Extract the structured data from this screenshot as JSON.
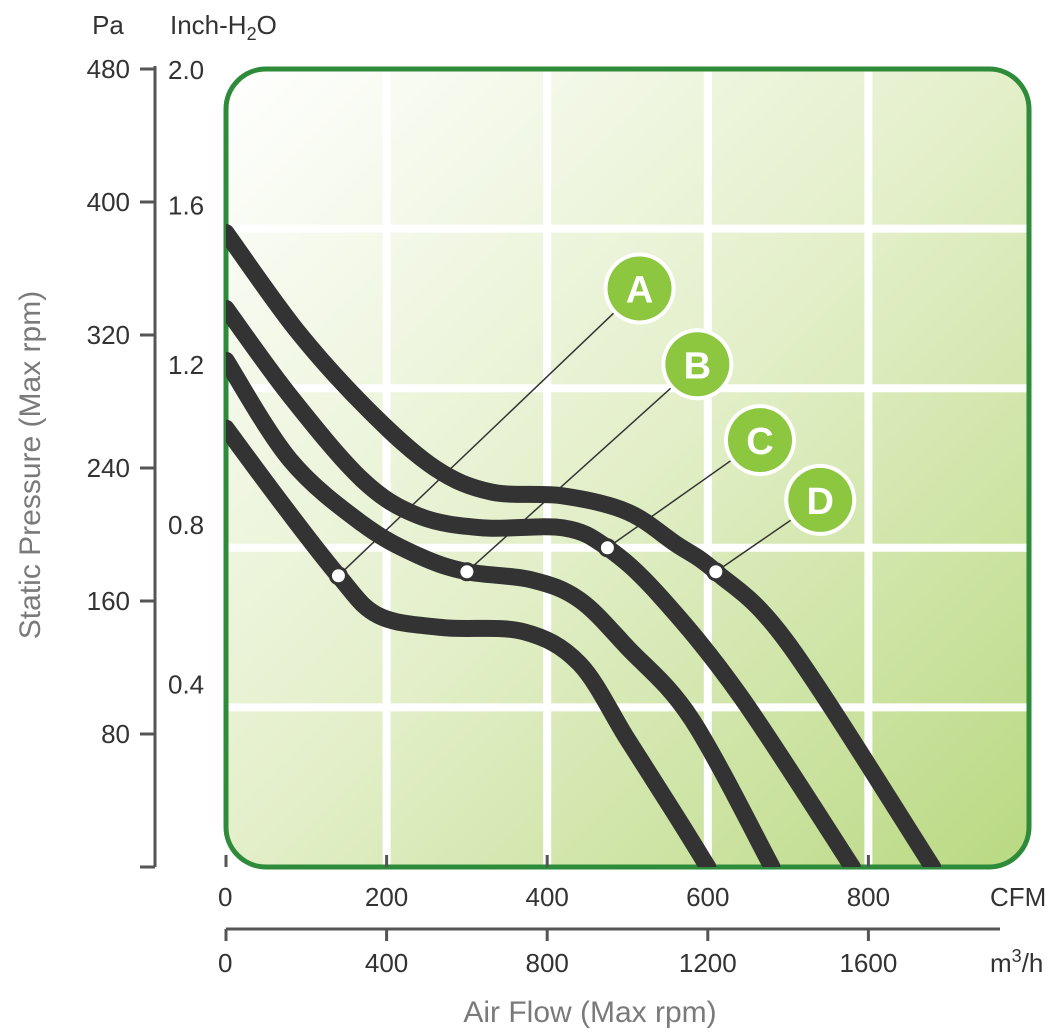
{
  "chart_data": {
    "type": "line",
    "ylabel": "Static Pressure (Max rpm)",
    "xlabel": "Air Flow (Max rpm)",
    "y_units_left": "Pa",
    "y_units_inner_prefix": "Inch-H",
    "y_units_inner_sub": "2",
    "y_units_inner_suffix": "O",
    "x_units_top": "CFM",
    "x_units_bottom_prefix": "m",
    "x_units_bottom_sup": "3",
    "x_units_bottom_suffix": "/h",
    "ylim_inch_h2o": [
      0,
      2.0
    ],
    "xlim_cfm": [
      0,
      1000
    ],
    "pa_ticks": [
      80,
      160,
      240,
      320,
      400,
      480
    ],
    "inch_ticks": [
      0.4,
      0.8,
      1.2,
      1.6,
      2.0
    ],
    "cfm_ticks": [
      0,
      200,
      400,
      600,
      800
    ],
    "m3h_ticks": [
      0,
      400,
      800,
      1200,
      1600
    ],
    "grid": true,
    "colors": {
      "frame": "#2e8b3a",
      "curve": "#333333",
      "badge": "#8dc63f",
      "axis": "#555555"
    },
    "series": [
      {
        "name": "A",
        "operating_point": {
          "x": 140,
          "y": 0.73
        },
        "x": [
          0,
          70,
          140,
          190,
          270,
          370,
          440,
          500,
          560,
          600
        ],
        "y": [
          1.1,
          0.91,
          0.73,
          0.63,
          0.6,
          0.59,
          0.51,
          0.32,
          0.13,
          0.0
        ]
      },
      {
        "name": "B",
        "operating_point": {
          "x": 300,
          "y": 0.74
        },
        "x": [
          0,
          80,
          170,
          240,
          300,
          380,
          440,
          500,
          580,
          680
        ],
        "y": [
          1.27,
          1.02,
          0.86,
          0.78,
          0.74,
          0.72,
          0.67,
          0.55,
          0.37,
          0.0
        ]
      },
      {
        "name": "C",
        "operating_point": {
          "x": 475,
          "y": 0.8
        },
        "x": [
          0,
          80,
          170,
          240,
          320,
          420,
          475,
          540,
          640,
          780
        ],
        "y": [
          1.4,
          1.18,
          0.97,
          0.88,
          0.85,
          0.85,
          0.8,
          0.68,
          0.43,
          0.0
        ]
      },
      {
        "name": "D",
        "operating_point": {
          "x": 610,
          "y": 0.74
        },
        "x": [
          0,
          90,
          180,
          260,
          330,
          420,
          500,
          560,
          610,
          700,
          880
        ],
        "y": [
          1.59,
          1.34,
          1.14,
          1.0,
          0.94,
          0.93,
          0.89,
          0.81,
          0.74,
          0.56,
          0.0
        ]
      }
    ],
    "badge_positions": [
      {
        "label": "A",
        "x": 515,
        "y": 1.45
      },
      {
        "label": "B",
        "x": 587,
        "y": 1.26
      },
      {
        "label": "C",
        "x": 665,
        "y": 1.07
      },
      {
        "label": "D",
        "x": 740,
        "y": 0.92
      }
    ]
  }
}
